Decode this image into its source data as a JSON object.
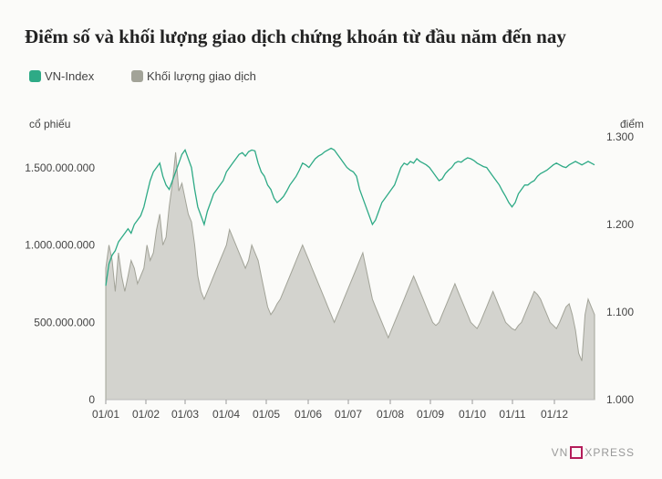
{
  "title": "Điểm số và khối lượng giao dịch chứng khoán từ đầu năm đến nay",
  "legend": {
    "vnindex_label": "VN-Index",
    "volume_label": "Khối lượng giao dịch"
  },
  "left_unit": "cổ phiếu",
  "right_unit": "điểm",
  "brand": {
    "pre": "VN",
    "post": "XPRESS"
  },
  "colors": {
    "vnindex": "#2eaa86",
    "volume_fill": "#d3d3ce",
    "volume_stroke": "#a2a398",
    "title": "#222222"
  },
  "chart_data": {
    "type": "line+area",
    "x_tick_labels": [
      "01/01",
      "01/02",
      "01/03",
      "01/04",
      "01/05",
      "01/06",
      "01/07",
      "01/08",
      "01/09",
      "01/10",
      "01/11",
      "01/12"
    ],
    "left_axis": {
      "ticks": [
        0,
        500000000,
        1000000000,
        1500000000
      ],
      "tick_labels": [
        "0",
        "500.000.000",
        "1.000.000.000",
        "1.500.000.000"
      ],
      "range": [
        0,
        1700000000
      ]
    },
    "right_axis": {
      "ticks": [
        1000,
        1100,
        1200,
        1300
      ],
      "tick_labels": [
        "1.000",
        "1.100",
        "1.200",
        "1.300"
      ],
      "range": [
        1000,
        1300
      ]
    },
    "series": [
      {
        "name": "VN-Index",
        "axis": "right",
        "values": [
          1130,
          1155,
          1165,
          1170,
          1180,
          1185,
          1190,
          1195,
          1190,
          1200,
          1205,
          1210,
          1220,
          1235,
          1250,
          1260,
          1265,
          1270,
          1255,
          1245,
          1240,
          1250,
          1260,
          1270,
          1280,
          1285,
          1275,
          1265,
          1240,
          1220,
          1210,
          1200,
          1215,
          1225,
          1235,
          1240,
          1245,
          1250,
          1260,
          1265,
          1270,
          1275,
          1280,
          1282,
          1278,
          1283,
          1285,
          1284,
          1270,
          1260,
          1255,
          1245,
          1240,
          1230,
          1225,
          1228,
          1232,
          1238,
          1245,
          1250,
          1255,
          1262,
          1270,
          1268,
          1265,
          1270,
          1275,
          1278,
          1280,
          1283,
          1285,
          1287,
          1285,
          1280,
          1275,
          1270,
          1265,
          1262,
          1260,
          1255,
          1240,
          1230,
          1220,
          1210,
          1200,
          1205,
          1215,
          1225,
          1230,
          1235,
          1240,
          1245,
          1255,
          1265,
          1270,
          1268,
          1272,
          1270,
          1275,
          1272,
          1270,
          1268,
          1265,
          1260,
          1255,
          1250,
          1252,
          1258,
          1262,
          1265,
          1270,
          1272,
          1271,
          1274,
          1276,
          1275,
          1273,
          1270,
          1268,
          1266,
          1265,
          1260,
          1255,
          1250,
          1245,
          1238,
          1232,
          1225,
          1220,
          1225,
          1235,
          1240,
          1245,
          1245,
          1248,
          1250,
          1255,
          1258,
          1260,
          1262,
          1265,
          1268,
          1270,
          1268,
          1266,
          1265,
          1268,
          1270,
          1272,
          1270,
          1268,
          1270,
          1272,
          1270,
          1268
        ]
      },
      {
        "name": "Khối lượng giao dịch",
        "axis": "left",
        "values": [
          850000000,
          1000000000,
          900000000,
          700000000,
          950000000,
          800000000,
          700000000,
          800000000,
          900000000,
          850000000,
          750000000,
          800000000,
          850000000,
          1000000000,
          900000000,
          950000000,
          1100000000,
          1200000000,
          1000000000,
          1050000000,
          1250000000,
          1400000000,
          1600000000,
          1350000000,
          1400000000,
          1300000000,
          1200000000,
          1150000000,
          1000000000,
          800000000,
          700000000,
          650000000,
          700000000,
          750000000,
          800000000,
          850000000,
          900000000,
          950000000,
          1000000000,
          1100000000,
          1050000000,
          1000000000,
          950000000,
          900000000,
          850000000,
          900000000,
          1000000000,
          950000000,
          900000000,
          800000000,
          700000000,
          600000000,
          550000000,
          580000000,
          620000000,
          650000000,
          700000000,
          750000000,
          800000000,
          850000000,
          900000000,
          950000000,
          1000000000,
          950000000,
          900000000,
          850000000,
          800000000,
          750000000,
          700000000,
          650000000,
          600000000,
          550000000,
          500000000,
          550000000,
          600000000,
          650000000,
          700000000,
          750000000,
          800000000,
          850000000,
          900000000,
          950000000,
          850000000,
          750000000,
          650000000,
          600000000,
          550000000,
          500000000,
          450000000,
          400000000,
          450000000,
          500000000,
          550000000,
          600000000,
          650000000,
          700000000,
          750000000,
          800000000,
          750000000,
          700000000,
          650000000,
          600000000,
          550000000,
          500000000,
          480000000,
          500000000,
          550000000,
          600000000,
          650000000,
          700000000,
          750000000,
          700000000,
          650000000,
          600000000,
          550000000,
          500000000,
          480000000,
          460000000,
          500000000,
          550000000,
          600000000,
          650000000,
          700000000,
          650000000,
          600000000,
          550000000,
          500000000,
          480000000,
          460000000,
          450000000,
          480000000,
          500000000,
          550000000,
          600000000,
          650000000,
          700000000,
          680000000,
          650000000,
          600000000,
          550000000,
          500000000,
          480000000,
          460000000,
          500000000,
          550000000,
          600000000,
          620000000,
          550000000,
          450000000,
          300000000,
          250000000,
          550000000,
          650000000,
          600000000,
          550000000
        ]
      }
    ]
  }
}
